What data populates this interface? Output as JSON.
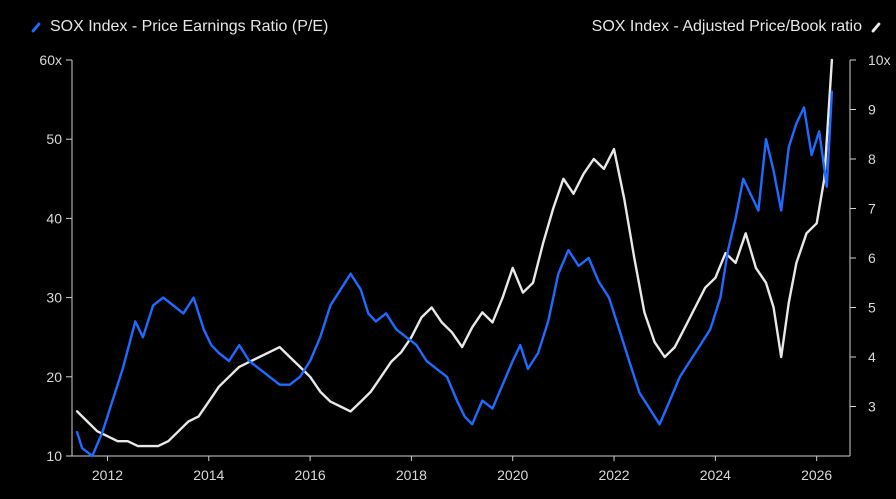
{
  "legend": {
    "left_label": "SOX Index - Price Earnings Ratio (P/E)",
    "right_label": "SOX Index - Adjusted Price/Book ratio"
  },
  "colors": {
    "background": "#000000",
    "pe_series": "#1f6bff",
    "pb_series": "#e8e8e8",
    "axis": "#cfcfcf",
    "text": "#d8d8d8"
  },
  "chart_data": {
    "type": "line",
    "title": "",
    "xlabel": "",
    "x_ticks": [
      "2012",
      "2014",
      "2016",
      "2018",
      "2020",
      "2022",
      "2024",
      "2026"
    ],
    "x_range": [
      2011.3,
      2026.5
    ],
    "y_left": {
      "ylabel": "",
      "ylim": [
        10,
        60
      ],
      "ticks": [
        "10",
        "20",
        "30",
        "40",
        "50",
        "60x"
      ]
    },
    "y_right": {
      "ylabel": "",
      "ylim": [
        2,
        10
      ],
      "ticks": [
        "3",
        "4",
        "5",
        "6",
        "7",
        "8",
        "9",
        "10x"
      ]
    },
    "grid": false,
    "legend_position": "top",
    "series": [
      {
        "name": "SOX Index - Price Earnings Ratio (P/E)",
        "axis": "left",
        "x": [
          2011.4,
          2011.5,
          2011.7,
          2011.9,
          2012.1,
          2012.3,
          2012.55,
          2012.7,
          2012.9,
          2013.1,
          2013.3,
          2013.5,
          2013.7,
          2013.9,
          2014.05,
          2014.2,
          2014.4,
          2014.6,
          2014.8,
          2015.0,
          2015.2,
          2015.4,
          2015.6,
          2015.8,
          2016.0,
          2016.2,
          2016.4,
          2016.6,
          2016.8,
          2017.0,
          2017.15,
          2017.3,
          2017.5,
          2017.7,
          2017.9,
          2018.1,
          2018.3,
          2018.5,
          2018.7,
          2018.9,
          2019.05,
          2019.2,
          2019.4,
          2019.6,
          2019.8,
          2020.0,
          2020.15,
          2020.3,
          2020.5,
          2020.7,
          2020.9,
          2021.1,
          2021.3,
          2021.5,
          2021.7,
          2021.9,
          2022.1,
          2022.3,
          2022.5,
          2022.7,
          2022.9,
          2023.1,
          2023.3,
          2023.5,
          2023.7,
          2023.9,
          2024.1,
          2024.25,
          2024.4,
          2024.55,
          2024.7,
          2024.85,
          2025.0,
          2025.15,
          2025.3,
          2025.45,
          2025.6,
          2025.75,
          2025.9,
          2026.05,
          2026.2,
          2026.3
        ],
        "values": [
          13,
          11,
          10,
          13,
          17,
          21,
          27,
          25,
          29,
          30,
          29,
          28,
          30,
          26,
          24,
          23,
          22,
          24,
          22,
          21,
          20,
          19,
          19,
          20,
          22,
          25,
          29,
          31,
          33,
          31,
          28,
          27,
          28,
          26,
          25,
          24,
          22,
          21,
          20,
          17,
          15,
          14,
          17,
          16,
          19,
          22,
          24,
          21,
          23,
          27,
          33,
          36,
          34,
          35,
          32,
          30,
          26,
          22,
          18,
          16,
          14,
          17,
          20,
          22,
          24,
          26,
          30,
          36,
          40,
          45,
          43,
          41,
          50,
          46,
          41,
          49,
          52,
          54,
          48,
          51,
          44,
          56
        ]
      },
      {
        "name": "SOX Index - Adjusted Price/Book ratio",
        "axis": "right",
        "x": [
          2011.4,
          2011.6,
          2011.8,
          2012.0,
          2012.2,
          2012.4,
          2012.6,
          2012.8,
          2013.0,
          2013.2,
          2013.4,
          2013.6,
          2013.8,
          2014.0,
          2014.2,
          2014.4,
          2014.6,
          2014.8,
          2015.0,
          2015.2,
          2015.4,
          2015.6,
          2015.8,
          2016.0,
          2016.2,
          2016.4,
          2016.6,
          2016.8,
          2017.0,
          2017.2,
          2017.4,
          2017.6,
          2017.8,
          2018.0,
          2018.2,
          2018.4,
          2018.6,
          2018.8,
          2019.0,
          2019.2,
          2019.4,
          2019.6,
          2019.8,
          2020.0,
          2020.2,
          2020.4,
          2020.6,
          2020.8,
          2021.0,
          2021.2,
          2021.4,
          2021.6,
          2021.8,
          2022.0,
          2022.2,
          2022.4,
          2022.6,
          2022.8,
          2023.0,
          2023.2,
          2023.4,
          2023.6,
          2023.8,
          2024.0,
          2024.2,
          2024.4,
          2024.6,
          2024.8,
          2025.0,
          2025.15,
          2025.3,
          2025.45,
          2025.6,
          2025.8,
          2026.0,
          2026.15,
          2026.3
        ],
        "values": [
          2.9,
          2.7,
          2.5,
          2.4,
          2.3,
          2.3,
          2.2,
          2.2,
          2.2,
          2.3,
          2.5,
          2.7,
          2.8,
          3.1,
          3.4,
          3.6,
          3.8,
          3.9,
          4.0,
          4.1,
          4.2,
          4.0,
          3.8,
          3.6,
          3.3,
          3.1,
          3.0,
          2.9,
          3.1,
          3.3,
          3.6,
          3.9,
          4.1,
          4.4,
          4.8,
          5.0,
          4.7,
          4.5,
          4.2,
          4.6,
          4.9,
          4.7,
          5.2,
          5.8,
          5.3,
          5.5,
          6.3,
          7.0,
          7.6,
          7.3,
          7.7,
          8.0,
          7.8,
          8.2,
          7.2,
          6.0,
          4.9,
          4.3,
          4.0,
          4.2,
          4.6,
          5.0,
          5.4,
          5.6,
          6.1,
          5.9,
          6.5,
          5.8,
          5.5,
          5.0,
          4.0,
          5.1,
          5.9,
          6.5,
          6.7,
          7.6,
          10.0
        ]
      }
    ]
  }
}
